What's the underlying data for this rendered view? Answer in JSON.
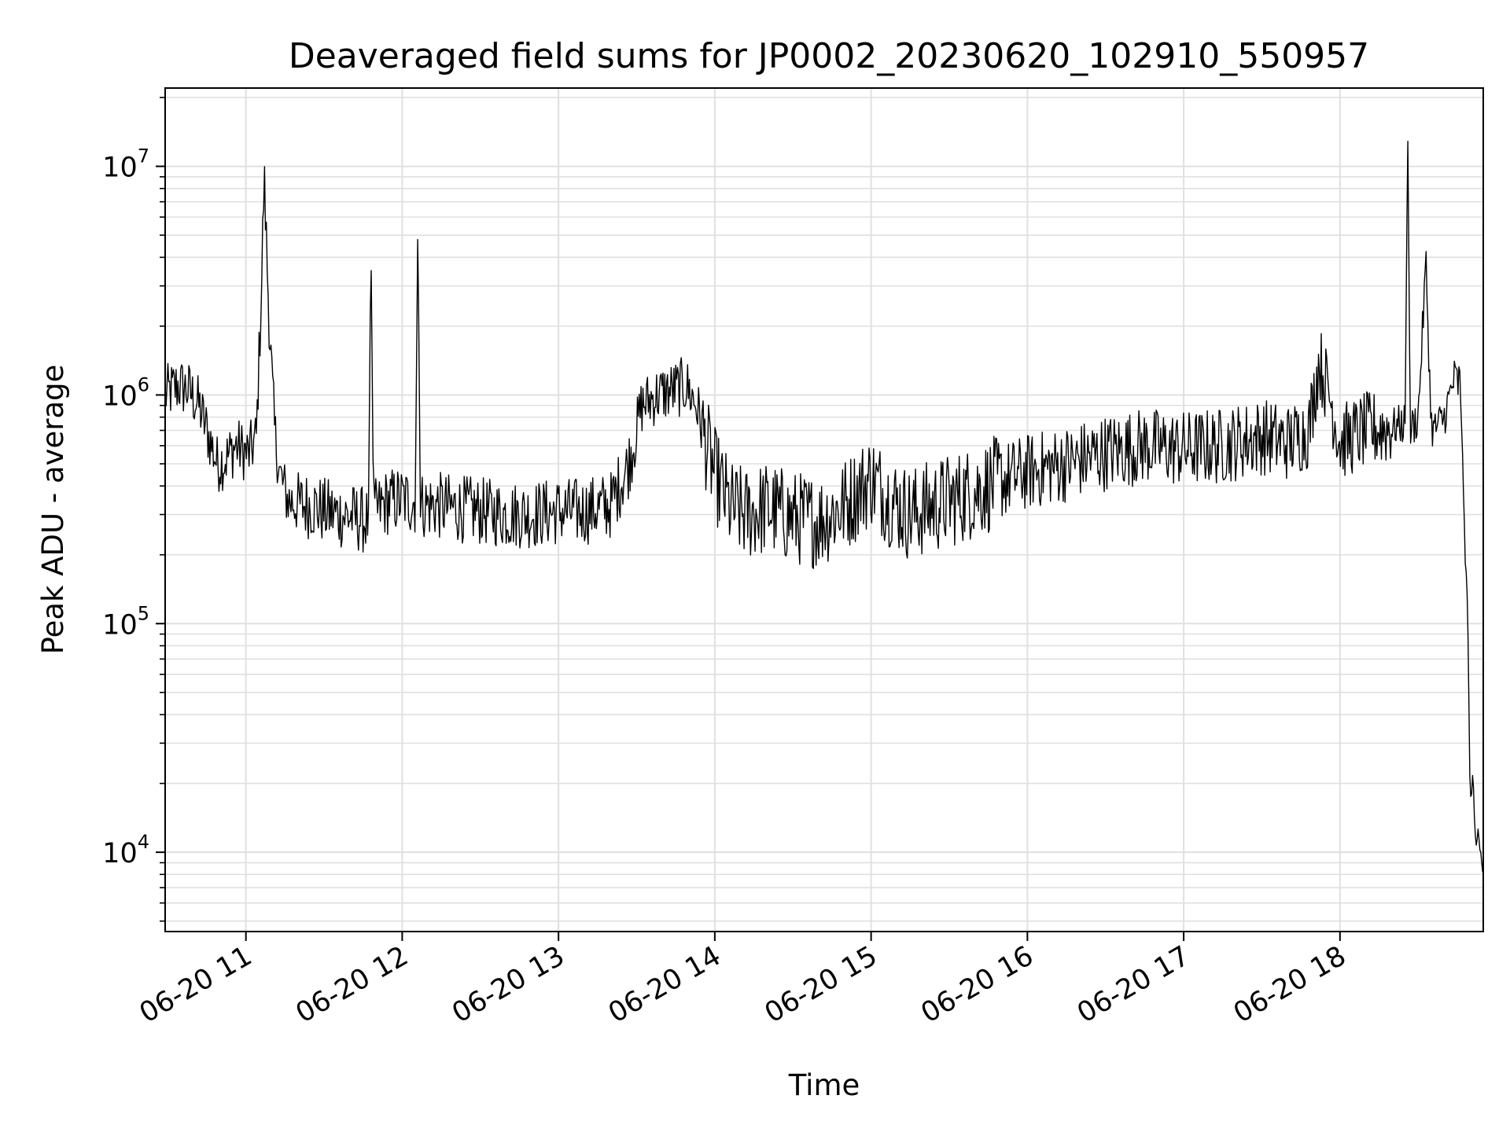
{
  "chart_data": {
    "type": "line",
    "title": "Deaveraged field sums for JP0002_20230620_102910_550957",
    "xlabel": "Time",
    "ylabel": "Peak ADU - average",
    "y_scale": "log",
    "xlim": [
      "06-20 10:29",
      "06-20 18:55"
    ],
    "ylim": [
      4500,
      22000000
    ],
    "grid": true,
    "legend": "none",
    "line_color": "#000000",
    "grid_color": "#e0e0e0",
    "x_ticks": [
      {
        "time": "06-20 11:00",
        "label": "06-20 11"
      },
      {
        "time": "06-20 12:00",
        "label": "06-20 12"
      },
      {
        "time": "06-20 13:00",
        "label": "06-20 13"
      },
      {
        "time": "06-20 14:00",
        "label": "06-20 14"
      },
      {
        "time": "06-20 15:00",
        "label": "06-20 15"
      },
      {
        "time": "06-20 16:00",
        "label": "06-20 16"
      },
      {
        "time": "06-20 17:00",
        "label": "06-20 17"
      },
      {
        "time": "06-20 18:00",
        "label": "06-20 18"
      }
    ],
    "y_ticks": [
      {
        "value": 10000,
        "base": "10",
        "exp": "4"
      },
      {
        "value": 100000,
        "base": "10",
        "exp": "5"
      },
      {
        "value": 1000000,
        "base": "10",
        "exp": "6"
      },
      {
        "value": 10000000,
        "base": "10",
        "exp": "7"
      }
    ],
    "series": [
      {
        "x": [
          "06-20 10:29",
          "06-20 10:34",
          "06-20 10:38",
          "06-20 10:42",
          "06-20 10:45",
          "06-20 10:49",
          "06-20 10:52",
          "06-20 10:56",
          "06-20 11:01",
          "06-20 11:04",
          "06-20 11:06",
          "06-20 11:07",
          "06-20 11:09",
          "06-20 11:11",
          "06-20 11:13",
          "06-20 11:16",
          "06-20 11:20",
          "06-20 11:25",
          "06-20 11:30",
          "06-20 11:36",
          "06-20 11:42",
          "06-20 11:47",
          "06-20 11:48",
          "06-20 11:49",
          "06-20 11:54",
          "06-20 12:00",
          "06-20 12:05",
          "06-20 12:06",
          "06-20 12:07",
          "06-20 12:12",
          "06-20 12:20",
          "06-20 12:30",
          "06-20 12:40",
          "06-20 12:50",
          "06-20 13:00",
          "06-20 13:10",
          "06-20 13:20",
          "06-20 13:27",
          "06-20 13:32",
          "06-20 13:38",
          "06-20 13:44",
          "06-20 13:49",
          "06-20 13:53",
          "06-20 13:56",
          "06-20 14:00",
          "06-20 14:06",
          "06-20 14:12",
          "06-20 14:20",
          "06-20 14:30",
          "06-20 14:40",
          "06-20 14:50",
          "06-20 15:00",
          "06-20 15:07",
          "06-20 15:15",
          "06-20 15:25",
          "06-20 15:35",
          "06-20 15:45",
          "06-20 16:00",
          "06-20 16:15",
          "06-20 16:30",
          "06-20 16:45",
          "06-20 17:00",
          "06-20 17:15",
          "06-20 17:30",
          "06-20 17:40",
          "06-20 17:48",
          "06-20 17:52",
          "06-20 17:56",
          "06-20 18:00",
          "06-20 18:10",
          "06-20 18:20",
          "06-20 18:25",
          "06-20 18:26",
          "06-20 18:27",
          "06-20 18:30",
          "06-20 18:33",
          "06-20 18:35",
          "06-20 18:36",
          "06-20 18:40",
          "06-20 18:44",
          "06-20 18:46",
          "06-20 18:47",
          "06-20 18:48",
          "06-20 18:49",
          "06-20 18:50",
          "06-20 18:51",
          "06-20 18:52",
          "06-20 18:53",
          "06-20 18:55"
        ],
        "y": [
          1000000,
          1100000,
          1050000,
          900000,
          700000,
          500000,
          520000,
          600000,
          550000,
          650000,
          3000000,
          9000000,
          2000000,
          700000,
          450000,
          350000,
          330000,
          330000,
          310000,
          300000,
          290000,
          280000,
          4600000,
          300000,
          340000,
          350000,
          340000,
          5500000,
          330000,
          330000,
          320000,
          310000,
          300000,
          300000,
          310000,
          310000,
          330000,
          500000,
          900000,
          1000000,
          1050000,
          1100000,
          900000,
          650000,
          450000,
          320000,
          300000,
          320000,
          290000,
          280000,
          330000,
          430000,
          350000,
          300000,
          330000,
          360000,
          400000,
          460000,
          500000,
          560000,
          600000,
          580000,
          600000,
          660000,
          620000,
          700000,
          1400000,
          1000000,
          620000,
          700000,
          720000,
          750000,
          15000000,
          700000,
          800000,
          3800000,
          750000,
          700000,
          800000,
          1200000,
          1100000,
          600000,
          200000,
          120000,
          16000,
          22000,
          11000,
          12000,
          8000
        ]
      }
    ]
  }
}
